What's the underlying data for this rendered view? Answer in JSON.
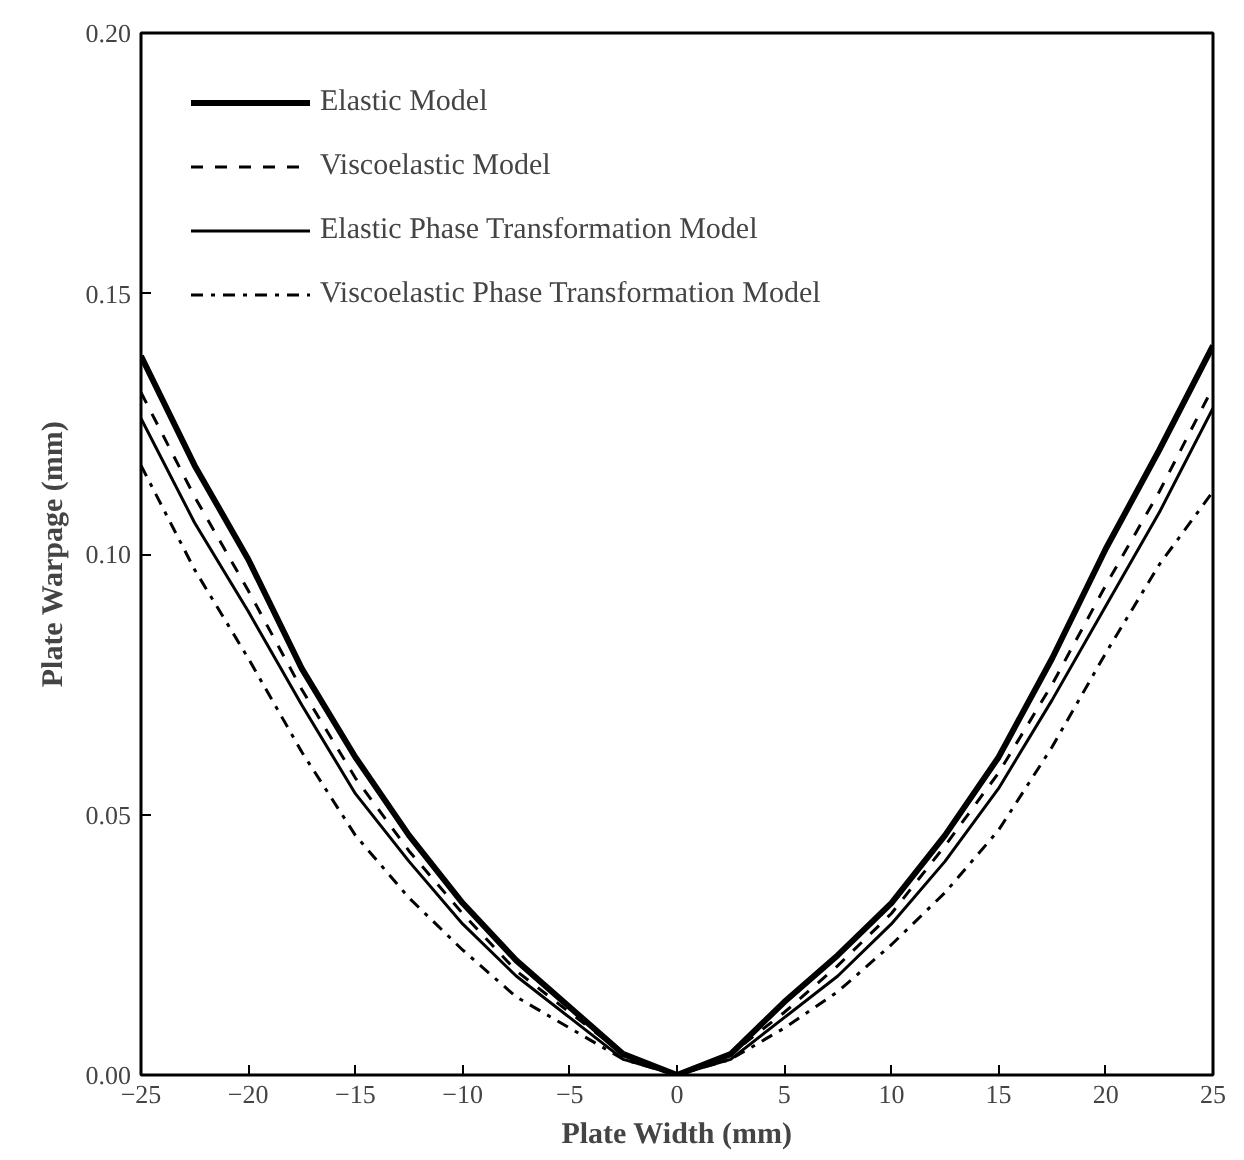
{
  "chart_data": {
    "type": "line",
    "xlabel": "Plate Width (mm)",
    "ylabel": "Plate Warpage (mm)",
    "x": [
      -25,
      -22.5,
      -20,
      -17.5,
      -15,
      -12.5,
      -10,
      -7.5,
      -5,
      -2.5,
      0,
      2.5,
      5,
      7.5,
      10,
      12.5,
      15,
      17.5,
      20,
      22.5,
      25
    ],
    "xlim": [
      -25,
      25
    ],
    "xticks": [
      -25,
      -20,
      -15,
      -10,
      -5,
      0,
      5,
      10,
      15,
      20,
      25
    ],
    "ylim": [
      0,
      0.2
    ],
    "yticks": [
      {
        "value": 0,
        "label": "0.00"
      },
      0.05,
      {
        "value": 0.1,
        "label": "0.10"
      },
      0.15,
      {
        "value": 0.2,
        "label": "0.20"
      }
    ],
    "grid": false,
    "legend": "top left",
    "marker": "none",
    "series": [
      {
        "name": "Elastic Model",
        "color": "#000000",
        "line_style": "solid",
        "values": [
          0.138,
          0.117,
          0.099,
          0.078,
          0.061,
          0.046,
          0.033,
          0.022,
          0.013,
          0.004,
          0,
          0.004,
          0.014,
          0.023,
          0.033,
          0.046,
          0.061,
          0.08,
          0.101,
          0.12,
          0.14
        ]
      },
      {
        "name": "Viscoelastic Model",
        "color": "#000000",
        "line_style": "dashed",
        "values": [
          0.131,
          0.111,
          0.093,
          0.074,
          0.057,
          0.043,
          0.031,
          0.02,
          0.012,
          0.004,
          0,
          0.004,
          0.012,
          0.021,
          0.031,
          0.044,
          0.058,
          0.075,
          0.094,
          0.112,
          0.132
        ]
      },
      {
        "name": "Elastic Phase Transformation Model",
        "color": "#000000",
        "line_style": "solid",
        "values": [
          0.126,
          0.106,
          0.089,
          0.071,
          0.054,
          0.041,
          0.029,
          0.019,
          0.011,
          0.003,
          0,
          0.003,
          0.011,
          0.019,
          0.029,
          0.041,
          0.055,
          0.072,
          0.09,
          0.108,
          0.128
        ]
      },
      {
        "name": "Viscoelastic Phase Transformation Model",
        "color": "#000000",
        "line_style": "dashdot",
        "values": [
          0.117,
          0.097,
          0.08,
          0.062,
          0.046,
          0.034,
          0.024,
          0.015,
          0.009,
          0.003,
          0,
          0.003,
          0.009,
          0.016,
          0.025,
          0.035,
          0.047,
          0.063,
          0.081,
          0.098,
          0.112
        ]
      }
    ]
  }
}
